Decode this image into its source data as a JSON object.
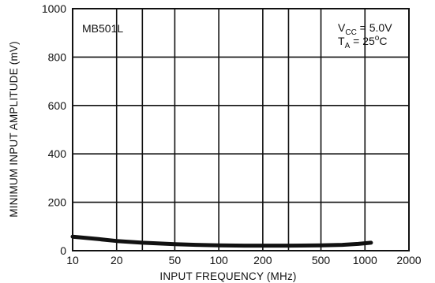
{
  "chart_data": {
    "type": "line",
    "title": "",
    "xlabel": "INPUT FREQUENCY (MHz)",
    "ylabel": "MINIMUM INPUT AMPLITUDE (mV)",
    "x_scale": "log",
    "xlim": [
      10,
      2000
    ],
    "ylim": [
      0,
      1000
    ],
    "x_ticks": [
      10,
      20,
      50,
      100,
      200,
      500,
      1000,
      2000
    ],
    "x_tick_labels": [
      "10",
      "20",
      "50",
      "100",
      "200",
      "500",
      "1000",
      "2000"
    ],
    "y_ticks": [
      0,
      200,
      400,
      600,
      800,
      1000
    ],
    "y_tick_labels": [
      "0",
      "200",
      "400",
      "600",
      "800",
      "1000"
    ],
    "x_grid_major": [
      10,
      20,
      30,
      50,
      100,
      200,
      300,
      500,
      1000,
      2000
    ],
    "y_grid_major": [
      0,
      200,
      400,
      600,
      800,
      1000
    ],
    "grid": true,
    "series": [
      {
        "x": [
          10,
          15,
          20,
          30,
          50,
          70,
          100,
          150,
          200,
          300,
          500,
          700,
          900,
          1100
        ],
        "y": [
          58,
          48,
          40,
          33,
          27,
          24,
          22,
          21,
          21,
          21,
          22,
          24,
          28,
          33
        ]
      }
    ],
    "annotations": {
      "device": "MB501L",
      "vcc": {
        "main": "V",
        "sub": "CC",
        "rest": " = 5.0V"
      },
      "ta": {
        "main": "T",
        "sub": "A",
        "rest": " = 25",
        "sup": "o",
        "unit": "C"
      }
    }
  }
}
